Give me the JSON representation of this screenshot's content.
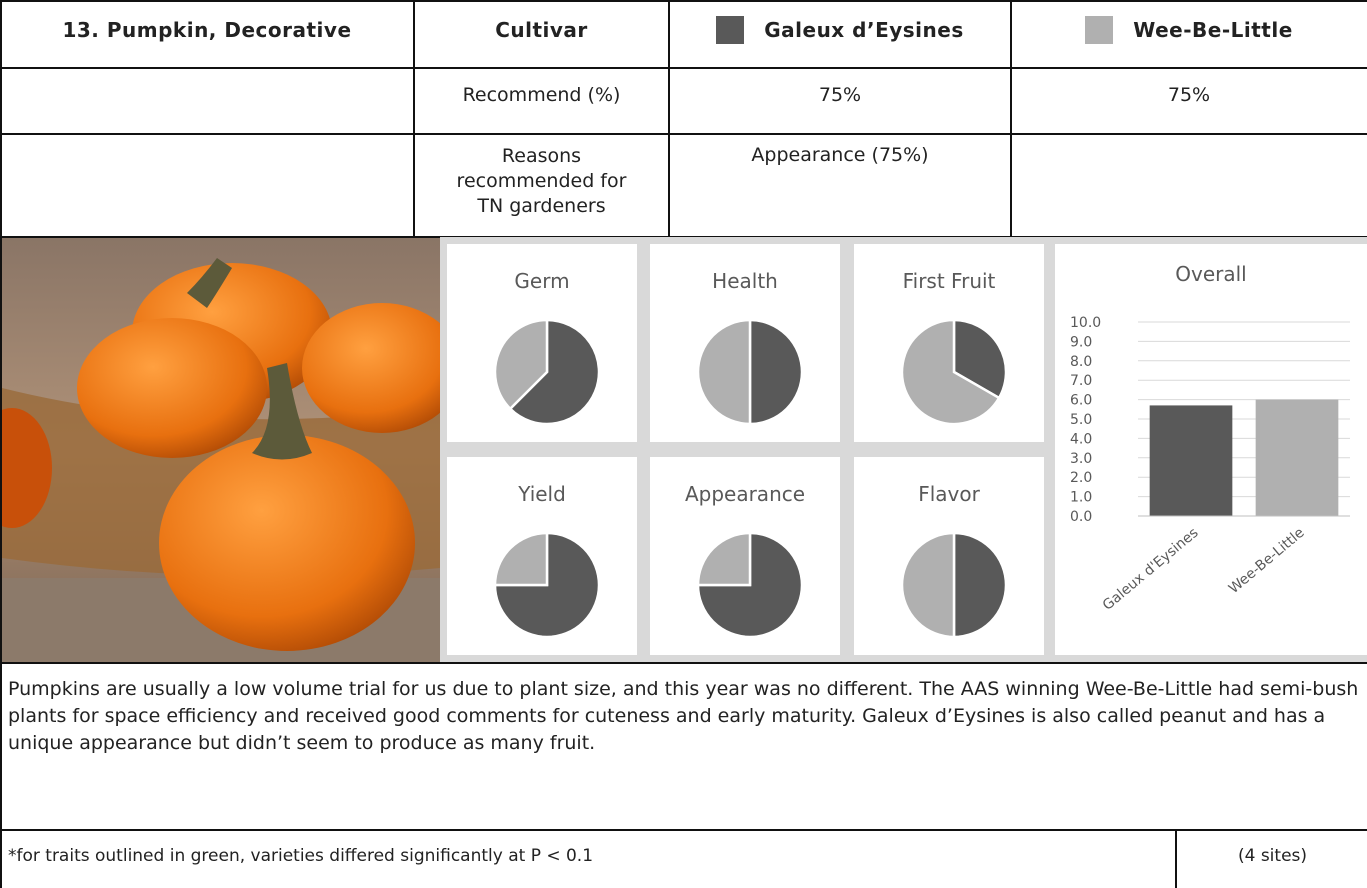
{
  "table": {
    "header": {
      "title": "13. Pumpkin, Decorative",
      "column_label": "Cultivar",
      "cultivars": [
        {
          "name": "Galeux d’Eysines",
          "color": "#595959"
        },
        {
          "name": "Wee-Be-Little",
          "color": "#b0b0b0"
        }
      ]
    },
    "rows": [
      {
        "label": "Recommend (%)",
        "cells": [
          "75%",
          "75%"
        ]
      },
      {
        "label": "Reasons recommended for TN gardeners",
        "cells": [
          "Appearance (75%)"
        ]
      }
    ]
  },
  "chart_data": [
    {
      "type": "pie",
      "title": "Germ",
      "values": [
        62.5,
        37.5
      ],
      "colors": [
        "#595959",
        "#b0b0b0"
      ]
    },
    {
      "type": "pie",
      "title": "Health",
      "values": [
        50,
        50
      ],
      "colors": [
        "#595959",
        "#b0b0b0"
      ]
    },
    {
      "type": "pie",
      "title": "First Fruit",
      "values": [
        33.3,
        66.7
      ],
      "colors": [
        "#595959",
        "#b0b0b0"
      ]
    },
    {
      "type": "pie",
      "title": "Yield",
      "values": [
        75,
        25
      ],
      "colors": [
        "#595959",
        "#b0b0b0"
      ]
    },
    {
      "type": "pie",
      "title": "Appearance",
      "values": [
        75,
        25
      ],
      "colors": [
        "#595959",
        "#b0b0b0"
      ]
    },
    {
      "type": "pie",
      "title": "Flavor",
      "values": [
        50,
        50
      ],
      "colors": [
        "#595959",
        "#b0b0b0"
      ]
    },
    {
      "type": "bar",
      "title": "Overall",
      "categories": [
        "Galeux d'Eysines",
        "Wee-Be-Little"
      ],
      "values": [
        5.7,
        6.0
      ],
      "colors": [
        "#595959",
        "#b0b0b0"
      ],
      "ylim": [
        0,
        10
      ],
      "yticks": [
        {
          "value": 0,
          "label": "0.0"
        },
        {
          "value": 1,
          "label": "1.0"
        },
        {
          "value": 2,
          "label": "2.0"
        },
        {
          "value": 3,
          "label": "3.0"
        },
        {
          "value": 4,
          "label": "4.0"
        },
        {
          "value": 5,
          "label": "5.0"
        },
        {
          "value": 6,
          "label": "6.0"
        },
        {
          "value": 7,
          "label": "7.0"
        },
        {
          "value": 8,
          "label": "8.0"
        },
        {
          "value": 9,
          "label": "9.0"
        },
        {
          "value": 10,
          "label": "10.0"
        }
      ],
      "grid": true
    }
  ],
  "text": {
    "paragraph": "Pumpkins are usually a low volume trial for us due to plant size, and this year was no different. The AAS winning Wee-Be-Little had semi-bush plants for space efficiency and received good comments for cuteness and early maturity. Galeux d’Eysines is also called peanut and has a unique appearance but didn’t seem to produce as many fruit.",
    "footnote": "*for traits outlined in green, varieties differed significantly at P < 0.1",
    "sites": "(4 sites)"
  }
}
